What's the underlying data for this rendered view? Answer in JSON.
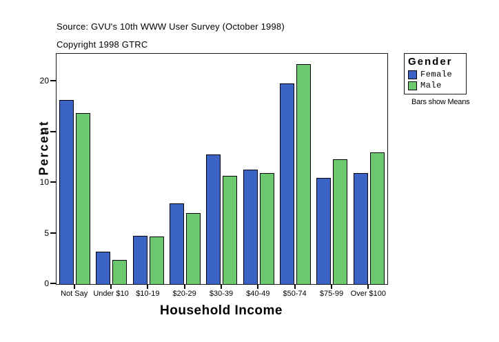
{
  "chart_data": {
    "type": "bar",
    "source": "Source: GVU's 10th WWW User Survey (October 1998)",
    "copyright": "Copyright 1998 GTRC",
    "xlabel": "Household Income",
    "ylabel": "Percent",
    "note": "Bars show Means",
    "categories": [
      "Not Say",
      "Under $10",
      "$10-19",
      "$20-29",
      "$30-39",
      "$40-49",
      "$50-74",
      "$75-99",
      "Over $100"
    ],
    "series": [
      {
        "name": "Female",
        "color": "#3B63C5",
        "values": [
          18.2,
          3.2,
          4.8,
          8.0,
          12.8,
          11.3,
          19.8,
          10.5,
          11.0
        ]
      },
      {
        "name": "Male",
        "color": "#6CC86E",
        "values": [
          16.9,
          2.4,
          4.7,
          7.0,
          10.7,
          11.0,
          21.7,
          12.3,
          13.0
        ]
      }
    ],
    "legend": {
      "title": "Gender",
      "position": "right"
    },
    "yticks": [
      0,
      5,
      10,
      15,
      20
    ],
    "ylim": [
      0,
      22.75
    ],
    "grid": false
  }
}
